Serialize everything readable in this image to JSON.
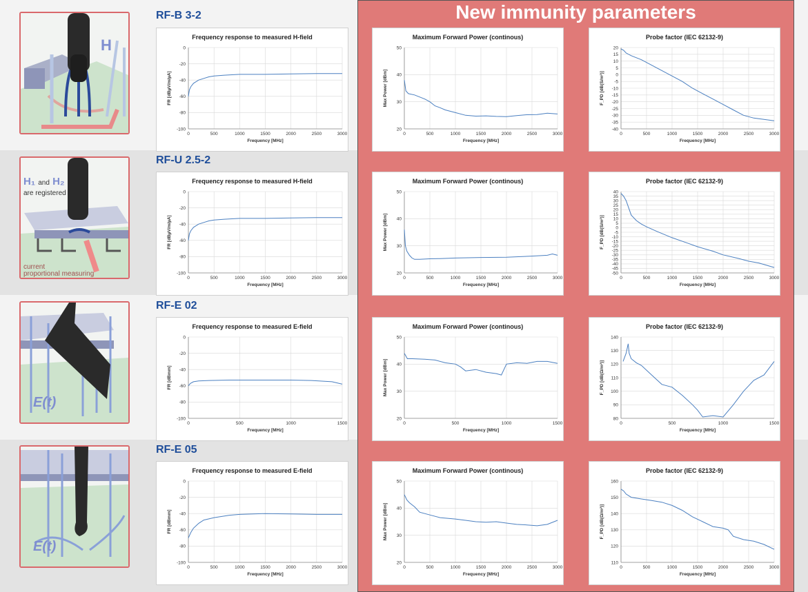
{
  "panel_title": "New immunity parameters",
  "rows": [
    {
      "probe": "RF-B 3-2",
      "charts": [
        {
          "type": "line",
          "title": "Frequency response to measured H-field",
          "xlabel": "Frequency [MHz]",
          "ylabel": "FR [dBµV/m/µA]",
          "xlim": [
            0,
            3000
          ],
          "ylim": [
            -100,
            0
          ],
          "xticks": [
            0,
            500,
            1000,
            1500,
            2000,
            2500,
            3000
          ],
          "yticks": [
            0,
            -20,
            -40,
            -60,
            -80,
            -100
          ],
          "x": [
            0,
            20,
            50,
            100,
            150,
            200,
            300,
            400,
            500,
            700,
            1000,
            1500,
            2000,
            2500,
            3000
          ],
          "y": [
            -60,
            -52,
            -48,
            -44,
            -42,
            -40,
            -38,
            -36,
            -35,
            -34,
            -33,
            -33,
            -32.5,
            -32,
            -32
          ]
        },
        {
          "type": "line",
          "title": "Maximum Forward Power (continous)",
          "xlabel": "Frequency [MHz]",
          "ylabel": "Max Power [dBm]",
          "xlim": [
            0,
            3000
          ],
          "ylim": [
            20,
            50
          ],
          "xticks": [
            0,
            500,
            1000,
            1500,
            2000,
            2500,
            3000
          ],
          "yticks": [
            20,
            30,
            40,
            50
          ],
          "x": [
            0,
            30,
            80,
            200,
            400,
            500,
            600,
            700,
            800,
            1000,
            1200,
            1400,
            1600,
            1800,
            2000,
            2200,
            2400,
            2600,
            2800,
            3000
          ],
          "y": [
            38,
            34,
            33,
            32.5,
            31,
            30,
            28.5,
            27.8,
            27,
            26,
            25,
            24.7,
            24.8,
            24.6,
            24.5,
            24.9,
            25.2,
            25.3,
            25.8,
            25.5
          ]
        },
        {
          "type": "line",
          "title": "Probe factor (IEC 62132-9)",
          "xlabel": "Frequency [MHz]",
          "ylabel": "F_PD [dB(S/m²)]",
          "xlim": [
            0,
            3000
          ],
          "ylim": [
            -40,
            20
          ],
          "xticks": [
            0,
            500,
            1000,
            1500,
            2000,
            2500,
            3000
          ],
          "yticks": [
            20,
            15,
            10,
            5,
            0,
            -5,
            -10,
            -15,
            -20,
            -25,
            -30,
            -35,
            -40
          ],
          "x": [
            0,
            50,
            100,
            200,
            400,
            600,
            800,
            1000,
            1200,
            1400,
            1600,
            1800,
            2000,
            2200,
            2400,
            2600,
            2800,
            3000
          ],
          "y": [
            19,
            18,
            16,
            14,
            11,
            7,
            3,
            -1,
            -5,
            -10,
            -14,
            -18,
            -22,
            -26,
            -30,
            -32,
            -33,
            -34
          ]
        }
      ]
    },
    {
      "probe": "RF-U 2.5-2",
      "charts": [
        {
          "type": "line",
          "title": "Frequency response to measured H-field",
          "xlabel": "Frequency [MHz]",
          "ylabel": "FR [dBµV/m/µA]",
          "xlim": [
            0,
            3000
          ],
          "ylim": [
            -100,
            0
          ],
          "xticks": [
            0,
            500,
            1000,
            1500,
            2000,
            2500,
            3000
          ],
          "yticks": [
            0,
            -20,
            -40,
            -60,
            -80,
            -100
          ],
          "x": [
            0,
            20,
            50,
            100,
            150,
            200,
            300,
            400,
            500,
            700,
            1000,
            1500,
            2000,
            2500,
            3000
          ],
          "y": [
            -60,
            -52,
            -48,
            -44,
            -42,
            -40,
            -38,
            -36,
            -35,
            -34,
            -33,
            -33,
            -32.5,
            -32,
            -32
          ]
        },
        {
          "type": "line",
          "title": "Maximum Forward Power (continous)",
          "xlabel": "Frequency [MHz]",
          "ylabel": "Max Power [dBm]",
          "xlim": [
            0,
            3000
          ],
          "ylim": [
            20,
            50
          ],
          "xticks": [
            0,
            500,
            1000,
            1500,
            2000,
            2500,
            3000
          ],
          "yticks": [
            20,
            30,
            40,
            50
          ],
          "x": [
            0,
            20,
            50,
            100,
            150,
            200,
            300,
            500,
            700,
            1000,
            1500,
            2000,
            2500,
            2800,
            2900,
            3000
          ],
          "y": [
            36,
            30,
            28,
            26.5,
            25.5,
            25,
            25,
            25.2,
            25.3,
            25.5,
            25.7,
            25.8,
            26.2,
            26.5,
            27,
            26.5
          ]
        },
        {
          "type": "line",
          "title": "Probe factor (IEC 62132-9)",
          "xlabel": "Frequency [MHz]",
          "ylabel": "F_PD [dB(S/m²)]",
          "xlim": [
            0,
            3000
          ],
          "ylim": [
            -50,
            40
          ],
          "xticks": [
            0,
            500,
            1000,
            1500,
            2000,
            2500,
            3000
          ],
          "yticks": [
            40,
            35,
            30,
            25,
            20,
            15,
            10,
            5,
            0,
            -5,
            -10,
            -15,
            -20,
            -25,
            -30,
            -35,
            -40,
            -45,
            -50
          ],
          "x": [
            0,
            50,
            100,
            150,
            200,
            300,
            400,
            500,
            700,
            1000,
            1300,
            1500,
            1800,
            2000,
            2300,
            2500,
            2700,
            3000
          ],
          "y": [
            38,
            35,
            30,
            22,
            14,
            8,
            4,
            1,
            -4,
            -11,
            -17,
            -21,
            -26,
            -30,
            -34,
            -37,
            -39,
            -44
          ]
        }
      ]
    },
    {
      "probe": "RF-E 02",
      "charts": [
        {
          "type": "line",
          "title": "Frequency response to measured E-field",
          "xlabel": "Frequency [MHz]",
          "ylabel": "FR [dBmm]",
          "xlim": [
            0,
            1500
          ],
          "ylim": [
            -100,
            0
          ],
          "xticks": [
            0,
            500,
            1000,
            1500
          ],
          "yticks": [
            0,
            -20,
            -40,
            -60,
            -80,
            -100
          ],
          "x": [
            0,
            20,
            50,
            100,
            200,
            400,
            600,
            800,
            1000,
            1200,
            1400,
            1500
          ],
          "y": [
            -60,
            -57,
            -55,
            -54,
            -53.5,
            -53,
            -53,
            -53,
            -53,
            -53.5,
            -55,
            -58
          ]
        },
        {
          "type": "line",
          "title": "Maximum Forward Power (continous)",
          "xlabel": "Frequency [MHz]",
          "ylabel": "Max Power [dBm]",
          "xlim": [
            0,
            1500
          ],
          "ylim": [
            20,
            50
          ],
          "xticks": [
            0,
            500,
            1000,
            1500
          ],
          "yticks": [
            20,
            30,
            40,
            50
          ],
          "x": [
            0,
            30,
            80,
            200,
            300,
            400,
            500,
            550,
            600,
            700,
            800,
            900,
            950,
            1000,
            1100,
            1200,
            1300,
            1400,
            1500
          ],
          "y": [
            44,
            42,
            42,
            41.8,
            41.5,
            40.5,
            40,
            39,
            37.5,
            38,
            37,
            36.5,
            36,
            40,
            40.5,
            40.3,
            41,
            41,
            40.3
          ]
        },
        {
          "type": "line",
          "title": "Probe factor (IEC 62132-9)",
          "xlabel": "Frequency [MHz]",
          "ylabel": "F_PD [dB(Ω/m²)]",
          "xlim": [
            0,
            1500
          ],
          "ylim": [
            80,
            140
          ],
          "xticks": [
            0,
            500,
            1000,
            1500
          ],
          "yticks": [
            80,
            90,
            100,
            110,
            120,
            130,
            140
          ],
          "x": [
            20,
            50,
            70,
            80,
            100,
            150,
            200,
            300,
            400,
            450,
            500,
            600,
            700,
            750,
            800,
            900,
            1000,
            1100,
            1200,
            1300,
            1400,
            1500
          ],
          "y": [
            122,
            128,
            135,
            128,
            124,
            121,
            119,
            112,
            105,
            104,
            103,
            97,
            90,
            86,
            81,
            82,
            81,
            90,
            100,
            108,
            112,
            122
          ]
        }
      ]
    },
    {
      "probe": "RF-E 05",
      "charts": [
        {
          "type": "line",
          "title": "Frequency response to measured E-field",
          "xlabel": "Frequency [MHz]",
          "ylabel": "FR [dBmm]",
          "xlim": [
            0,
            3000
          ],
          "ylim": [
            -100,
            0
          ],
          "xticks": [
            0,
            500,
            1000,
            1500,
            2000,
            2500,
            3000
          ],
          "yticks": [
            0,
            -20,
            -40,
            -60,
            -80,
            -100
          ],
          "x": [
            0,
            50,
            100,
            200,
            300,
            500,
            800,
            1000,
            1500,
            2000,
            2500,
            3000
          ],
          "y": [
            -70,
            -63,
            -58,
            -52,
            -48,
            -45,
            -42,
            -41,
            -40,
            -40.5,
            -41,
            -41
          ]
        },
        {
          "type": "line",
          "title": "Maximum Forward Power (continous)",
          "xlabel": "Frequency [MHz]",
          "ylabel": "Max Power [dBm]",
          "xlim": [
            0,
            3000
          ],
          "ylim": [
            20,
            50
          ],
          "xticks": [
            0,
            500,
            1000,
            1500,
            2000,
            2500,
            3000
          ],
          "yticks": [
            20,
            30,
            40,
            50
          ],
          "x": [
            0,
            50,
            100,
            200,
            300,
            500,
            700,
            1000,
            1200,
            1400,
            1600,
            1800,
            2000,
            2200,
            2400,
            2600,
            2800,
            3000
          ],
          "y": [
            45,
            43,
            42,
            40.5,
            38.5,
            37.5,
            36.5,
            36,
            35.5,
            35,
            34.8,
            35,
            34.5,
            34,
            33.8,
            33.5,
            34,
            35.5
          ]
        },
        {
          "type": "line",
          "title": "Probe factor (IEC 62132-9)",
          "xlabel": "Frequency [MHz]",
          "ylabel": "F_PD [dB(Ω/m²)]",
          "xlim": [
            0,
            3000
          ],
          "ylim": [
            110,
            160
          ],
          "xticks": [
            0,
            500,
            1000,
            1500,
            2000,
            2500,
            3000
          ],
          "yticks": [
            110,
            120,
            130,
            140,
            150,
            160
          ],
          "x": [
            0,
            50,
            100,
            200,
            400,
            600,
            800,
            1000,
            1200,
            1400,
            1600,
            1800,
            2000,
            2100,
            2200,
            2400,
            2600,
            2800,
            3000
          ],
          "y": [
            155,
            154,
            152,
            150,
            149,
            148,
            147,
            145,
            142,
            138,
            135,
            132,
            131,
            130,
            126,
            124,
            123,
            121,
            118
          ]
        }
      ]
    }
  ],
  "photos": [
    {
      "label_vector": "H",
      "icon": "h-field-probe-illustration"
    },
    {
      "label_line1_a": "H₁",
      "label_line1_b": "and",
      "label_line1_c": "H₂",
      "label_line2": "are registered",
      "label_line3": "current",
      "label_line4": "proportional measuring",
      "icon": "h-field-probe-illustration"
    },
    {
      "label_vector": "E(t)",
      "icon": "e-field-probe-illustration"
    },
    {
      "label_vector": "E(t)",
      "icon": "e-field-probe-illustration"
    }
  ],
  "colors": {
    "panel": "#e07a78",
    "probe_name": "#1f4e9a",
    "line": "#4a7fc0",
    "photo_border": "#d9686b"
  }
}
